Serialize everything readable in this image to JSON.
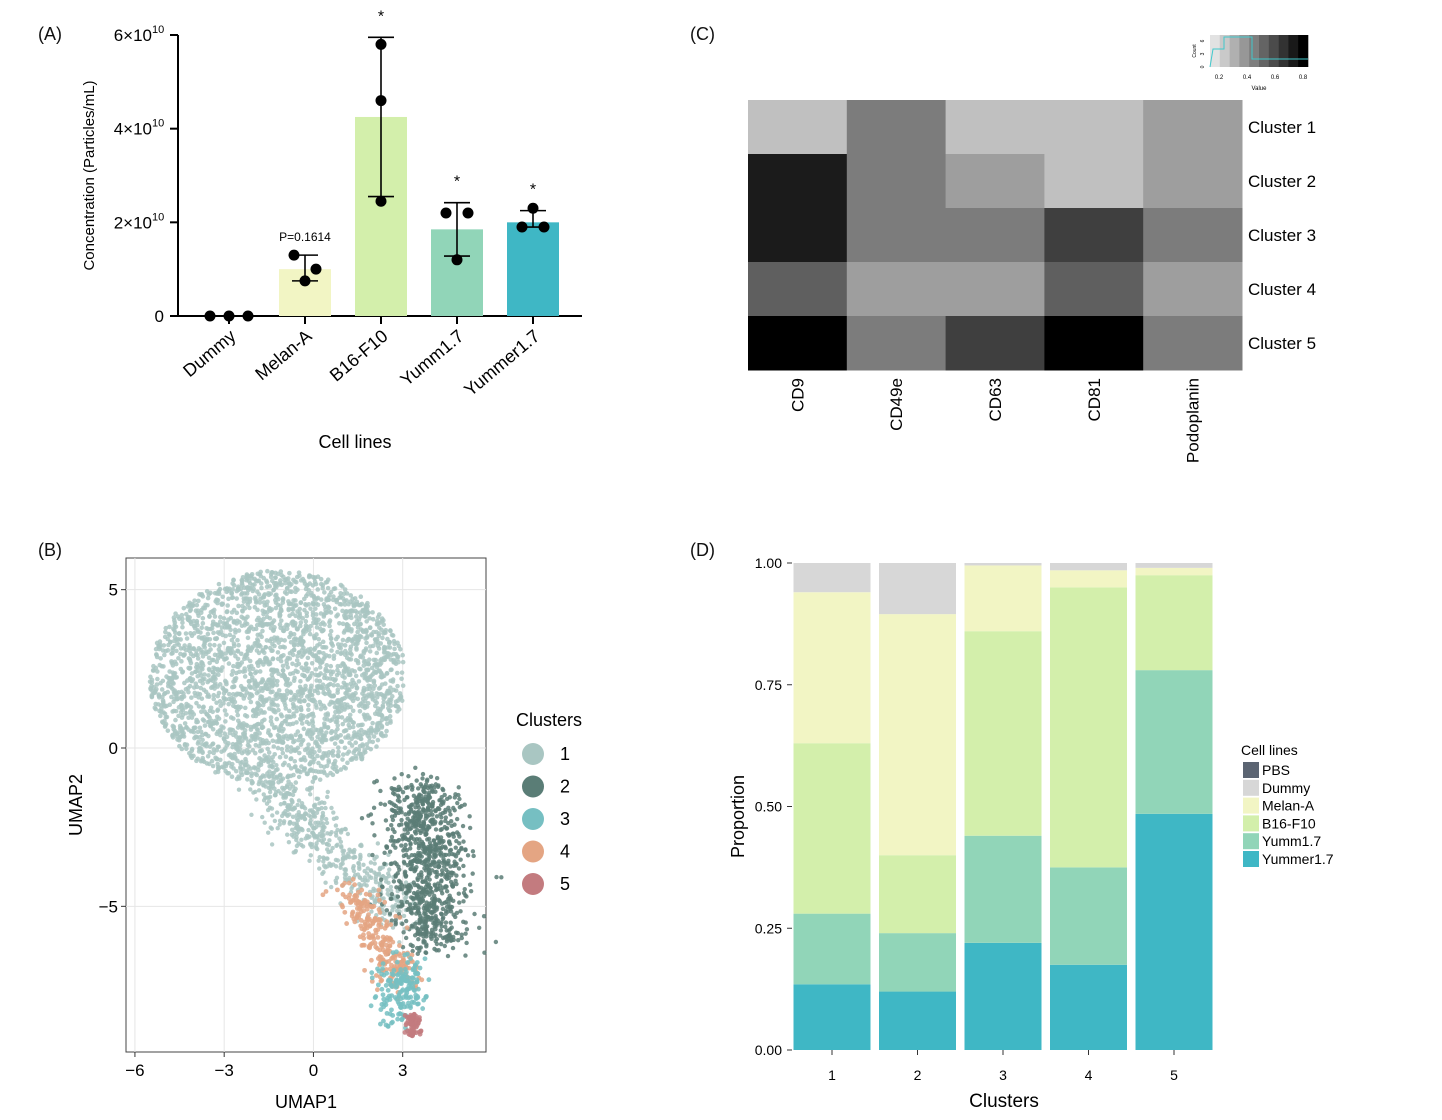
{
  "panels": {
    "a": "(A)",
    "b": "(B)",
    "c": "(C)",
    "d": "(D)"
  },
  "chart_data": [
    {
      "type": "bar",
      "id": "A",
      "categories": [
        "Dummy",
        "Melan-A",
        "B16-F10",
        "Yumm1.7",
        "Yummer1.7"
      ],
      "values": [
        0.0,
        1.0,
        4.25,
        1.85,
        2.0
      ],
      "errors": [
        [
          0,
          0
        ],
        [
          0.75,
          1.3
        ],
        [
          2.55,
          5.95
        ],
        [
          1.28,
          2.42
        ],
        [
          1.9,
          2.25
        ]
      ],
      "points": [
        [
          0,
          0,
          0
        ],
        [
          1.3,
          1.0,
          0.75
        ],
        [
          5.8,
          4.6,
          2.45
        ],
        [
          2.2,
          2.2,
          1.2
        ],
        [
          2.3,
          1.9,
          1.9
        ]
      ],
      "colors": [
        "#f0f0c0",
        "#f2f5c4",
        "#d3efab",
        "#91d5b8",
        "#3fb7c5"
      ],
      "annotations": [
        "",
        "P=0.1614",
        "*",
        "*",
        "*"
      ],
      "ylim": [
        0,
        6
      ],
      "yticks": [
        "0",
        "2×10",
        "4×10",
        "6×10"
      ],
      "ytick_exponent": "10",
      "ylabel": "Concentration (Particles/mL)",
      "xlabel": "Cell lines"
    },
    {
      "type": "scatter",
      "id": "B",
      "xlabel": "UMAP1",
      "ylabel": "UMAP2",
      "xticks": [
        "−6",
        "−3",
        "0",
        "3"
      ],
      "xtick_values": [
        -6,
        -3,
        0,
        3
      ],
      "yticks": [
        "5",
        "0",
        "−5"
      ],
      "ytick_values": [
        5,
        0,
        -5
      ],
      "xlim": [
        -6.3,
        5.8
      ],
      "ylim": [
        -9.6,
        6.0
      ],
      "legend_title": "Clusters",
      "clusters": [
        {
          "name": "1",
          "color": "#a9c6c2"
        },
        {
          "name": "2",
          "color": "#5a7d76"
        },
        {
          "name": "3",
          "color": "#76bfc2"
        },
        {
          "name": "4",
          "color": "#e4a583"
        },
        {
          "name": "5",
          "color": "#c37b7f"
        }
      ]
    },
    {
      "type": "heatmap",
      "id": "C",
      "columns": [
        "CD9",
        "CD49e",
        "CD63",
        "CD81",
        "Podoplanin"
      ],
      "rows": [
        "Cluster 1",
        "Cluster 2",
        "Cluster 3",
        "Cluster 4",
        "Cluster 5"
      ],
      "values": [
        [
          0.15,
          0.45,
          0.15,
          0.15,
          0.3
        ],
        [
          0.88,
          0.45,
          0.3,
          0.15,
          0.3
        ],
        [
          0.88,
          0.45,
          0.45,
          0.72,
          0.45
        ],
        [
          0.58,
          0.3,
          0.3,
          0.58,
          0.3
        ],
        [
          1.0,
          0.45,
          0.72,
          1.0,
          0.45
        ]
      ],
      "key_ticks": [
        "0.2",
        "0.4",
        "0.6",
        "0.8"
      ],
      "key_xlabel": "Value",
      "key_ylabel": "Count",
      "key_yticks": [
        "0",
        "3",
        "6"
      ]
    },
    {
      "type": "bar",
      "stacked": true,
      "id": "D",
      "categories": [
        "1",
        "2",
        "3",
        "4",
        "5"
      ],
      "xlabel": "Clusters",
      "ylabel": "Proportion",
      "ylim": [
        0,
        1
      ],
      "yticks": [
        "0.00",
        "0.25",
        "0.50",
        "0.75",
        "1.00"
      ],
      "legend_title": "Cell lines",
      "series": [
        {
          "name": "Yummer1.7",
          "color": "#3fb7c5",
          "values": [
            0.135,
            0.12,
            0.22,
            0.175,
            0.485
          ]
        },
        {
          "name": "Yumm1.7",
          "color": "#91d5b8",
          "values": [
            0.145,
            0.12,
            0.22,
            0.2,
            0.295
          ]
        },
        {
          "name": "B16-F10",
          "color": "#d3efab",
          "values": [
            0.35,
            0.16,
            0.42,
            0.575,
            0.195
          ]
        },
        {
          "name": "Melan-A",
          "color": "#f2f5c4",
          "values": [
            0.31,
            0.495,
            0.135,
            0.035,
            0.015
          ]
        },
        {
          "name": "Dummy",
          "color": "#d7d7d7",
          "values": [
            0.06,
            0.105,
            0.005,
            0.015,
            0.01
          ]
        },
        {
          "name": "PBS",
          "color": "#5b6472",
          "values": [
            0,
            0,
            0,
            0,
            0
          ]
        }
      ],
      "legend_order": [
        "PBS",
        "Dummy",
        "Melan-A",
        "B16-F10",
        "Yumm1.7",
        "Yummer1.7"
      ]
    }
  ]
}
